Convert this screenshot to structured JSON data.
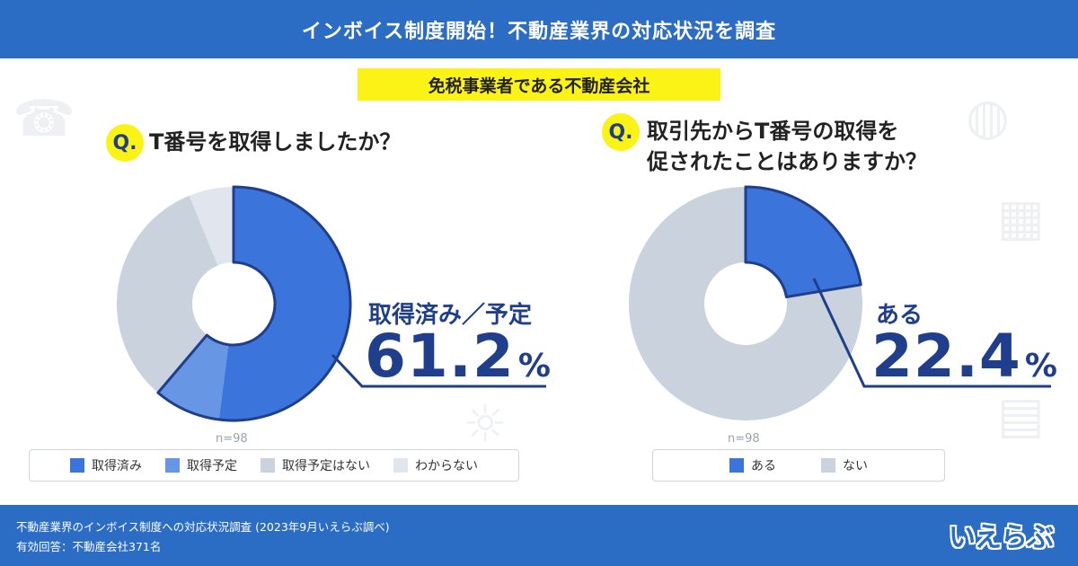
{
  "header": {
    "title": "インボイス制度開始！不動産業界の対応状況を調査"
  },
  "subtitle": "免税事業者である不動産会社",
  "colors": {
    "brand": "#2b6cc4",
    "accent_yellow": "#fbf216",
    "dark_blue": "#1f3f8c",
    "blue": "#3b74db",
    "light_blue": "#6796e4",
    "gray": "#c9d2dd",
    "light_gray": "#e1e6ee"
  },
  "q_badge": "Q.",
  "chart_data": [
    {
      "type": "pie",
      "donut": true,
      "question": "T番号を取得しましたか？",
      "n_label": "n=98",
      "callout_label": "取得済み／予定",
      "callout_value": "61.2",
      "callout_unit": "%",
      "slices": [
        {
          "label": "取得済み",
          "value": 52.0,
          "color": "#3b74db"
        },
        {
          "label": "取得予定",
          "value": 9.2,
          "color": "#6796e4"
        },
        {
          "label": "取得予定はない",
          "value": 32.6,
          "color": "#c9d2dd"
        },
        {
          "label": "わからない",
          "value": 6.2,
          "color": "#e1e6ee"
        }
      ],
      "highlight_slices": [
        0,
        1
      ],
      "legend_position": "bottom"
    },
    {
      "type": "pie",
      "donut": true,
      "question_line1": "取引先からT番号の取得を",
      "question_line2": "促されたことはありますか？",
      "n_label": "n=98",
      "callout_label": "ある",
      "callout_value": "22.4",
      "callout_unit": "%",
      "slices": [
        {
          "label": "ある",
          "value": 22.4,
          "color": "#3b74db"
        },
        {
          "label": "ない",
          "value": 77.6,
          "color": "#c9d2dd"
        }
      ],
      "highlight_slices": [
        0
      ],
      "legend_position": "bottom"
    }
  ],
  "footer": {
    "line1": "不動産業界のインボイス制度への対応状況調査 (2023年9月いえらぶ調べ)",
    "line2": "有効回答：不動産会社371名",
    "logo": "いえらぶ"
  }
}
